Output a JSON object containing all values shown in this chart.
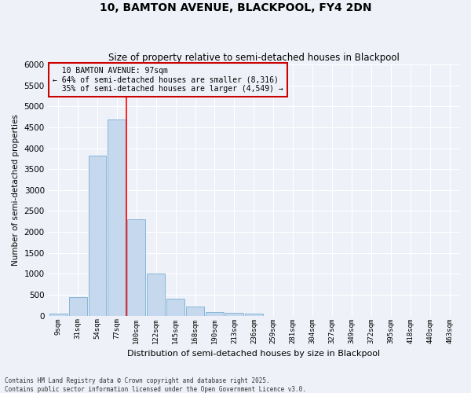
{
  "title1": "10, BAMTON AVENUE, BLACKPOOL, FY4 2DN",
  "title2": "Size of property relative to semi-detached houses in Blackpool",
  "xlabel": "Distribution of semi-detached houses by size in Blackpool",
  "ylabel": "Number of semi-detached properties",
  "footnote": "Contains HM Land Registry data © Crown copyright and database right 2025.\nContains public sector information licensed under the Open Government Licence v3.0.",
  "bar_labels": [
    "9sqm",
    "31sqm",
    "54sqm",
    "77sqm",
    "100sqm",
    "122sqm",
    "145sqm",
    "168sqm",
    "190sqm",
    "213sqm",
    "236sqm",
    "259sqm",
    "281sqm",
    "304sqm",
    "327sqm",
    "349sqm",
    "372sqm",
    "395sqm",
    "418sqm",
    "440sqm",
    "463sqm"
  ],
  "bar_values": [
    50,
    440,
    3820,
    4680,
    2300,
    1000,
    415,
    215,
    90,
    75,
    50,
    0,
    0,
    0,
    0,
    0,
    0,
    0,
    0,
    0,
    0
  ],
  "bar_color": "#c5d8ed",
  "bar_edge_color": "#7aafd4",
  "ylim": [
    0,
    6000
  ],
  "yticks": [
    0,
    500,
    1000,
    1500,
    2000,
    2500,
    3000,
    3500,
    4000,
    4500,
    5000,
    5500,
    6000
  ],
  "property_label": "10 BAMTON AVENUE: 97sqm",
  "pct_smaller": 64,
  "pct_larger": 35,
  "count_smaller": "8,316",
  "count_larger": "4,549",
  "vline_bar_index": 4,
  "annotation_box_color": "#cc0000",
  "background_color": "#eef2f8",
  "grid_color": "#ffffff"
}
